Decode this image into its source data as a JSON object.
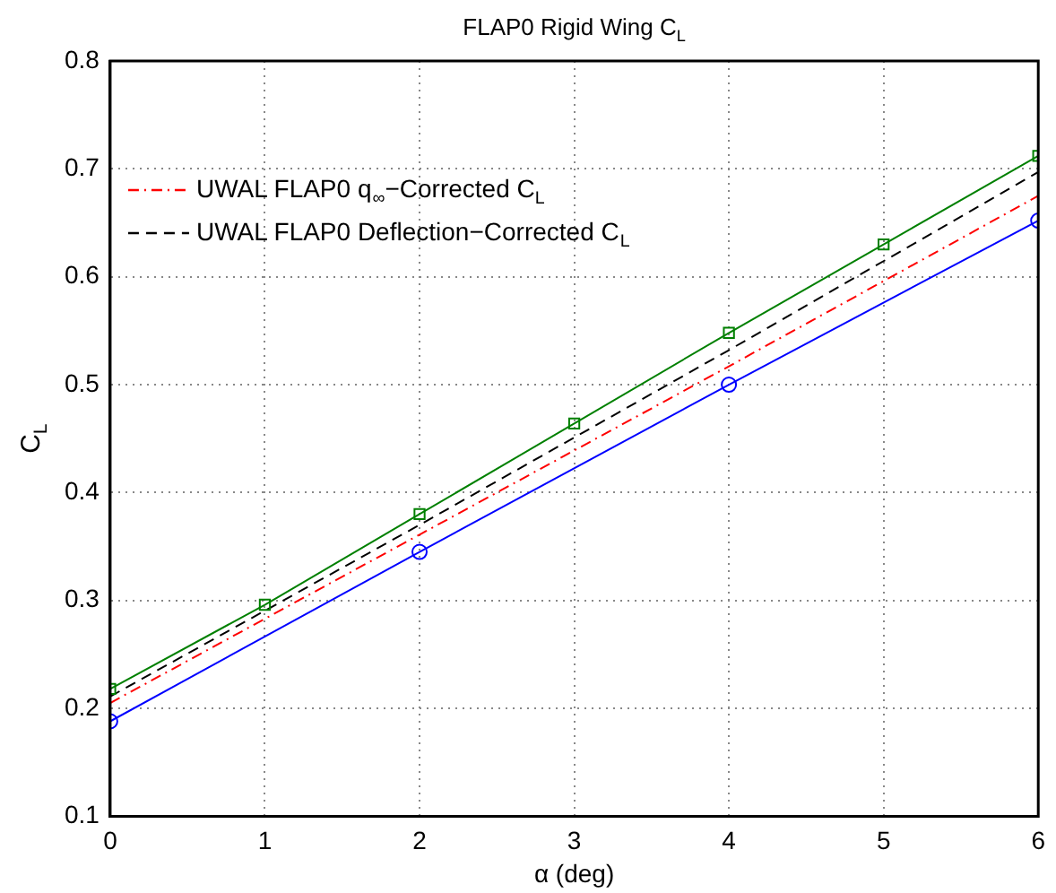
{
  "chart_data": {
    "type": "line",
    "title": "FLAP0 Rigid Wing C$_{L}$",
    "xlabel": "α (deg)",
    "ylabel": "C$_{L}$",
    "xlim": [
      0,
      6
    ],
    "xticks": [
      0,
      1,
      2,
      3,
      4,
      5,
      6
    ],
    "ylim": [
      0.1,
      0.8
    ],
    "yticks": [
      0.1,
      0.2,
      0.3,
      0.4,
      0.5,
      0.6,
      0.7,
      0.8
    ],
    "grid": true,
    "legend": "top left",
    "series": [
      {
        "color": "#0000ff",
        "marker": "circle",
        "line_style": "solid",
        "x": [
          0,
          2,
          4,
          6
        ],
        "values": [
          0.188,
          0.345,
          0.5,
          0.652
        ]
      },
      {
        "color": "#008000",
        "marker": "square",
        "line_style": "solid",
        "x": [
          0,
          1,
          2,
          3,
          4,
          5,
          6
        ],
        "values": [
          0.218,
          0.296,
          0.38,
          0.464,
          0.548,
          0.63,
          0.712
        ]
      },
      {
        "name": "UWAL FLAP0 q$_{∞}$−Corrected C$_{L}$",
        "color": "#ff0000",
        "marker": "none",
        "line_style": "dashdot",
        "x": [
          0,
          2,
          4,
          6
        ],
        "values": [
          0.205,
          0.361,
          0.517,
          0.675
        ]
      },
      {
        "name": "UWAL FLAP0 Deflection−Corrected C$_{L}$",
        "color": "#000000",
        "marker": "none",
        "line_style": "dashed",
        "x": [
          0,
          2,
          4,
          6
        ],
        "values": [
          0.211,
          0.37,
          0.532,
          0.697
        ]
      }
    ]
  }
}
